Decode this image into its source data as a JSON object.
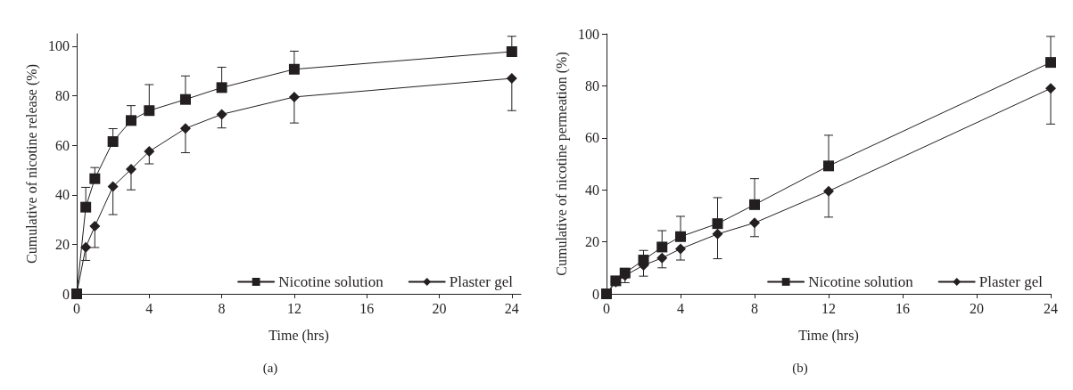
{
  "chart_data": [
    {
      "type": "line",
      "xlabel": "Time (hrs)",
      "ylabel": "Cumulative of nicotine release (%)",
      "annotations": [
        "(a)"
      ],
      "x": [
        0,
        0.5,
        1,
        2,
        3,
        4,
        6,
        8,
        12,
        24
      ],
      "xlim": [
        0,
        24.5
      ],
      "xticks": [
        0,
        4,
        8,
        12,
        16,
        20,
        24
      ],
      "ylim": [
        0,
        105
      ],
      "yticks": [
        0,
        20,
        40,
        60,
        80,
        100
      ],
      "grid": false,
      "legend": "bottom right",
      "line_style": "solid",
      "series": [
        {
          "name": "Nicotine solution",
          "color": "#231f20",
          "marker": "square",
          "values": [
            0,
            35,
            46.5,
            61.5,
            70,
            74,
            78.5,
            83.3,
            90.7,
            97.8
          ],
          "errors": [
            null,
            [
              35,
              43
            ],
            [
              46.5,
              51
            ],
            [
              61.5,
              66.7
            ],
            [
              70,
              76
            ],
            [
              74,
              84.5
            ],
            [
              78.5,
              88
            ],
            [
              83.3,
              91.5
            ],
            [
              90.7,
              98
            ],
            [
              97.8,
              104
            ]
          ]
        },
        {
          "name": "Plaster gel",
          "color": "#231f20",
          "marker": "diamond",
          "values": [
            0,
            18.8,
            27.3,
            43.3,
            50.3,
            57.5,
            66.8,
            72.5,
            79.5,
            87
          ],
          "errors": [
            null,
            [
              13.5,
              18.8
            ],
            [
              18.7,
              27.3
            ],
            [
              32,
              43.3
            ],
            [
              42,
              50.3
            ],
            [
              52.5,
              57.5
            ],
            [
              57,
              66.8
            ],
            [
              67,
              72.5
            ],
            [
              69,
              79.5
            ],
            [
              74,
              87
            ]
          ]
        }
      ]
    },
    {
      "type": "line",
      "xlabel": "Time (hrs)",
      "ylabel": "Cumulative of nicotine permeation (%)",
      "annotations": [
        "(b)"
      ],
      "x": [
        0,
        0.5,
        1,
        2,
        3,
        4,
        6,
        8,
        12,
        24
      ],
      "xlim": [
        0,
        24
      ],
      "xticks": [
        0,
        4,
        8,
        12,
        16,
        20,
        24
      ],
      "ylim": [
        0,
        100
      ],
      "yticks": [
        0,
        20,
        40,
        60,
        80,
        100
      ],
      "grid": false,
      "legend": "bottom right",
      "line_style": "solid",
      "series": [
        {
          "name": "Nicotine solution",
          "color": "#231f20",
          "marker": "square",
          "values": [
            0,
            5,
            8,
            13,
            18,
            22,
            27,
            34.3,
            49.2,
            89
          ],
          "errors": [
            null,
            null,
            [
              8,
              9.5
            ],
            [
              13,
              16.7
            ],
            [
              18,
              24.3
            ],
            [
              22,
              29.8
            ],
            [
              27,
              37
            ],
            [
              34.3,
              44.3
            ],
            [
              49.2,
              61
            ],
            [
              89,
              99
            ]
          ]
        },
        {
          "name": "Plaster gel",
          "color": "#231f20",
          "marker": "diamond",
          "values": [
            0,
            4.5,
            7,
            11,
            13.8,
            17.3,
            23,
            27.3,
            39.5,
            79
          ],
          "errors": [
            null,
            null,
            [
              4.3,
              7
            ],
            [
              6.8,
              11
            ],
            [
              10,
              13.8
            ],
            [
              13,
              17.3
            ],
            [
              13.5,
              23
            ],
            [
              22,
              27.3
            ],
            [
              29.5,
              39.5
            ],
            [
              65.3,
              79
            ]
          ]
        }
      ]
    }
  ]
}
